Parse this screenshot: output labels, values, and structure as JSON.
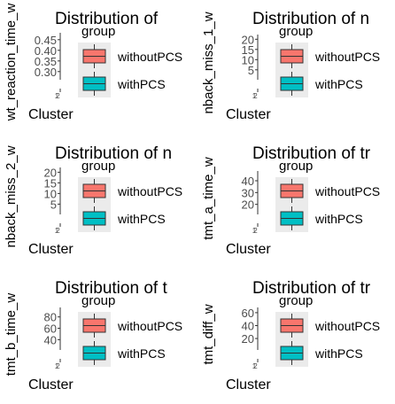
{
  "legend": {
    "title": "group",
    "entries": [
      {
        "label": "withoutPCS",
        "color": "#F8766D"
      },
      {
        "label": "withPCS",
        "color": "#00BFC4"
      }
    ]
  },
  "chart_data": [
    {
      "type": "boxplot",
      "title": "Distribution of",
      "xlabel": "Cluster",
      "ylabel": "wt_reaction_time_w",
      "yticks": [
        "0.30",
        "0.35",
        "0.40",
        "0.45"
      ],
      "ylim": [
        0.27,
        0.47
      ],
      "categories": [
        "1",
        "2"
      ],
      "series": [
        {
          "name": "withoutPCS",
          "values": []
        },
        {
          "name": "withPCS",
          "values": []
        }
      ]
    },
    {
      "type": "boxplot",
      "title": "Distribution of n",
      "xlabel": "Cluster",
      "ylabel": "nback_miss_1_w",
      "yticks": [
        "5",
        "10",
        "15",
        "20"
      ],
      "ylim": [
        1,
        21
      ],
      "categories": [
        "1",
        "2"
      ],
      "series": [
        {
          "name": "withoutPCS",
          "values": []
        },
        {
          "name": "withPCS",
          "values": []
        }
      ]
    },
    {
      "type": "boxplot",
      "title": "Distribution of n",
      "xlabel": "Cluster",
      "ylabel": "nback_miss_2_w",
      "yticks": [
        "5",
        "10",
        "15",
        "20"
      ],
      "ylim": [
        1,
        21
      ],
      "categories": [
        "1",
        "2"
      ],
      "series": [
        {
          "name": "withoutPCS",
          "values": []
        },
        {
          "name": "withPCS",
          "values": []
        }
      ]
    },
    {
      "type": "boxplot",
      "title": "Distribution of tr",
      "xlabel": "Cluster",
      "ylabel": "tmt_a_time_w",
      "yticks": [
        "20",
        "30",
        "40"
      ],
      "ylim": [
        13,
        46
      ],
      "categories": [
        "1",
        "2"
      ],
      "series": [
        {
          "name": "withoutPCS",
          "values": []
        },
        {
          "name": "withPCS",
          "values": []
        }
      ]
    },
    {
      "type": "boxplot",
      "title": "Distribution of t",
      "xlabel": "Cluster",
      "ylabel": "tmt_b_time_w",
      "yticks": [
        "40",
        "60",
        "80"
      ],
      "ylim": [
        25,
        92
      ],
      "categories": [
        "1",
        "2"
      ],
      "series": [
        {
          "name": "withoutPCS",
          "values": []
        },
        {
          "name": "withPCS",
          "values": []
        }
      ]
    },
    {
      "type": "boxplot",
      "title": "Distribution of tr",
      "xlabel": "Cluster",
      "ylabel": "tmt_diff_w",
      "yticks": [
        "20",
        "40",
        "60"
      ],
      "ylim": [
        5,
        64
      ],
      "categories": [
        "1",
        "2"
      ],
      "series": [
        {
          "name": "withoutPCS",
          "values": []
        },
        {
          "name": "withPCS",
          "values": []
        }
      ]
    }
  ]
}
